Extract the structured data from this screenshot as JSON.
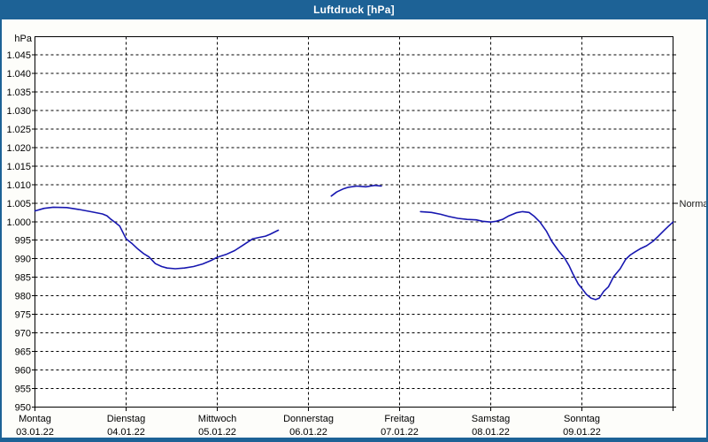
{
  "window": {
    "title": "Luftdruck [hPa]"
  },
  "colors": {
    "frame_blue": "#1d6296",
    "content_bg": "#fdfdfa",
    "plot_bg": "#ffffff",
    "grid": "#000000",
    "line_blue": "#1717b0",
    "title_text": "#ffffff"
  },
  "chart_data": {
    "type": "line",
    "title": "Luftdruck [hPa]",
    "ylabel": "hPa",
    "grid": true,
    "y_axis": {
      "min": 950,
      "max_gridline": 1045,
      "step": 5,
      "tick_labels": [
        "950",
        "955",
        "960",
        "965",
        "970",
        "975",
        "980",
        "985",
        "990",
        "995",
        "1.000",
        "1.005",
        "1.010",
        "1.015",
        "1.020",
        "1.025",
        "1.030",
        "1.035",
        "1.040",
        "1.045"
      ]
    },
    "x_axis": {
      "unit": "days",
      "tick_days": [
        {
          "name": "Montag",
          "date": "03.01.22"
        },
        {
          "name": "Dienstag",
          "date": "04.01.22"
        },
        {
          "name": "Mittwoch",
          "date": "05.01.22"
        },
        {
          "name": "Donnerstag",
          "date": "06.01.22"
        },
        {
          "name": "Freitag",
          "date": "07.01.22"
        },
        {
          "name": "Samstag",
          "date": "08.01.22"
        },
        {
          "name": "Sonntag",
          "date": "09.01.22"
        }
      ]
    },
    "normal_marker": {
      "label": "Normal",
      "value": 1005
    },
    "series": [
      {
        "name": "Luftdruck",
        "unit": "hPa",
        "color": "#1717b0",
        "x_unit": "days since Montag 03.01.22 (0 = Mon, 7 = right edge)",
        "segments": [
          [
            [
              0.0,
              1002.9
            ],
            [
              0.1,
              1003.6
            ],
            [
              0.2,
              1003.9
            ],
            [
              0.35,
              1003.8
            ],
            [
              0.48,
              1003.3
            ],
            [
              0.61,
              1002.7
            ],
            [
              0.74,
              1002.1
            ],
            [
              0.79,
              1001.6
            ],
            [
              0.83,
              1000.7
            ],
            [
              0.88,
              999.8
            ],
            [
              0.93,
              998.8
            ],
            [
              1.0,
              995.4
            ],
            [
              1.06,
              994.2
            ],
            [
              1.13,
              992.6
            ],
            [
              1.19,
              991.4
            ],
            [
              1.25,
              990.5
            ],
            [
              1.32,
              988.7
            ],
            [
              1.39,
              987.9
            ],
            [
              1.45,
              987.5
            ],
            [
              1.54,
              987.3
            ],
            [
              1.64,
              987.5
            ],
            [
              1.74,
              987.9
            ],
            [
              1.84,
              988.6
            ],
            [
              1.93,
              989.5
            ],
            [
              2.0,
              990.4
            ],
            [
              2.1,
              991.2
            ],
            [
              2.19,
              992.2
            ],
            [
              2.29,
              993.8
            ],
            [
              2.39,
              995.4
            ],
            [
              2.47,
              995.8
            ],
            [
              2.53,
              996.1
            ],
            [
              2.58,
              996.6
            ],
            [
              2.67,
              997.7
            ]
          ],
          [
            [
              3.25,
              1006.9
            ],
            [
              3.31,
              1008.0
            ],
            [
              3.38,
              1008.8
            ],
            [
              3.44,
              1009.3
            ],
            [
              3.53,
              1009.6
            ],
            [
              3.63,
              1009.4
            ],
            [
              3.68,
              1009.6
            ],
            [
              3.73,
              1009.8
            ],
            [
              3.8,
              1009.6
            ]
          ],
          [
            [
              4.23,
              1002.7
            ],
            [
              4.35,
              1002.5
            ],
            [
              4.45,
              1002.0
            ],
            [
              4.54,
              1001.4
            ],
            [
              4.64,
              1000.9
            ],
            [
              4.74,
              1000.6
            ],
            [
              4.84,
              1000.5
            ],
            [
              4.91,
              1000.1
            ],
            [
              5.0,
              999.9
            ],
            [
              5.06,
              1000.1
            ],
            [
              5.13,
              1000.6
            ],
            [
              5.2,
              1001.6
            ],
            [
              5.28,
              1002.4
            ],
            [
              5.35,
              1002.7
            ],
            [
              5.42,
              1002.5
            ],
            [
              5.48,
              1001.4
            ],
            [
              5.54,
              999.9
            ],
            [
              5.61,
              997.5
            ],
            [
              5.67,
              994.7
            ],
            [
              5.74,
              992.3
            ],
            [
              5.81,
              990.2
            ],
            [
              5.86,
              988.1
            ],
            [
              5.9,
              986.0
            ],
            [
              5.96,
              983.2
            ],
            [
              6.0,
              982.0
            ],
            [
              6.05,
              980.4
            ],
            [
              6.1,
              979.4
            ],
            [
              6.15,
              979.0
            ],
            [
              6.19,
              979.4
            ],
            [
              6.24,
              981.2
            ],
            [
              6.29,
              982.4
            ],
            [
              6.35,
              985.2
            ],
            [
              6.42,
              987.3
            ],
            [
              6.48,
              989.8
            ],
            [
              6.53,
              991.0
            ],
            [
              6.58,
              991.8
            ],
            [
              6.64,
              992.7
            ],
            [
              6.71,
              993.5
            ],
            [
              6.78,
              994.7
            ],
            [
              6.84,
              996.1
            ],
            [
              6.9,
              997.6
            ],
            [
              6.95,
              998.8
            ],
            [
              7.0,
              999.9
            ]
          ]
        ]
      }
    ]
  }
}
